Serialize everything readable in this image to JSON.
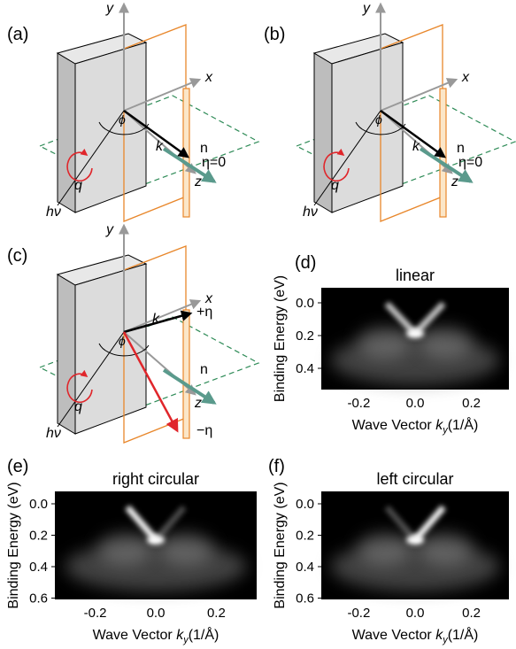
{
  "panels": {
    "a": {
      "label": "(a)",
      "y": "y",
      "x": "x",
      "z": "z",
      "phi": "ϕ",
      "k": "k",
      "n": "n",
      "eta": "η=0",
      "q": "q",
      "hv": "hν"
    },
    "b": {
      "label": "(b)",
      "y": "y",
      "x": "x",
      "z": "z",
      "phi": "ϕ",
      "k": "k",
      "n": "n",
      "eta": "η=0",
      "q": "q",
      "hv": "hν"
    },
    "c": {
      "label": "(c)",
      "y": "y",
      "x": "x",
      "z": "z",
      "phi": "ϕ",
      "k": "k",
      "n": "n",
      "eta_plus": "+η",
      "eta_minus": "−η",
      "q": "q",
      "hv": "hν"
    },
    "d": {
      "label": "(d)",
      "title": "linear",
      "y_label": "Binding Energy (eV)",
      "x_label": {
        "text": "Wave Vector ",
        "var": "k",
        "sub": "y",
        "unit": "(1/Å)"
      },
      "yticks": [
        "0.0",
        "0.2",
        "0.4"
      ],
      "xticks": [
        "-0.2",
        "0.0",
        "0.2"
      ]
    },
    "e": {
      "label": "(e)",
      "title": "right circular",
      "y_label": "Binding Energy (eV)",
      "x_label": {
        "text": "Wave Vector ",
        "var": "k",
        "sub": "y",
        "unit": "(1/Å)"
      },
      "yticks": [
        "0.0",
        "0.2",
        "0.4",
        "0.6"
      ],
      "xticks": [
        "-0.2",
        "0.0",
        "0.2"
      ]
    },
    "f": {
      "label": "(f)",
      "title": "left circular",
      "y_label": "Binding Energy (eV)",
      "x_label": {
        "text": "Wave Vector ",
        "var": "k",
        "sub": "y",
        "unit": "(1/Å)"
      },
      "yticks": [
        "0.0",
        "0.2",
        "0.4",
        "0.6"
      ],
      "xticks": [
        "-0.2",
        "0.0",
        "0.2"
      ]
    }
  }
}
